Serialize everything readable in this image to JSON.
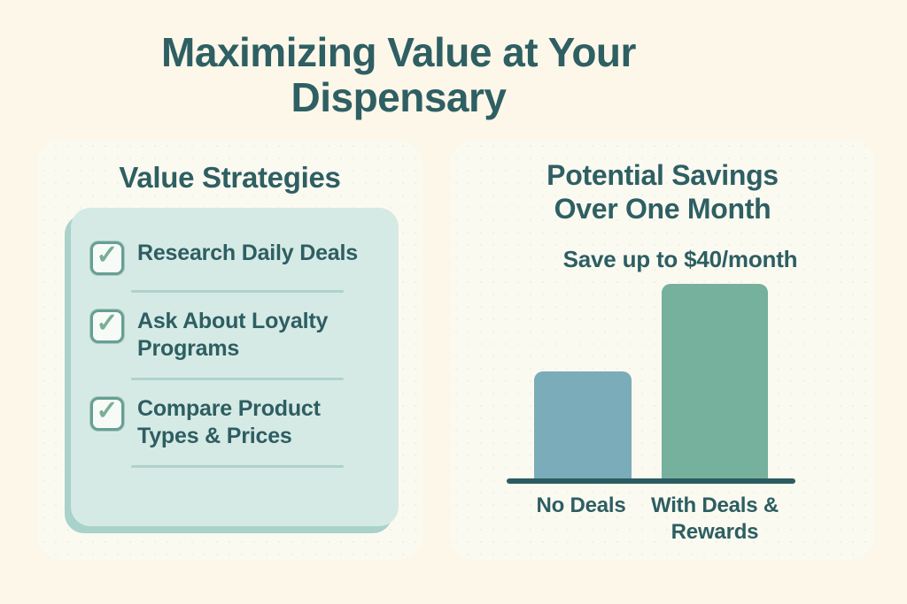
{
  "page": {
    "title_line1": "Maximizing Value at Your",
    "title_line2": "Dispensary"
  },
  "left_panel": {
    "heading": "Value Strategies",
    "checklist": {
      "checkmark_glyph": "✓",
      "items": [
        {
          "label": "Research Daily Deals",
          "checked": true
        },
        {
          "label": "Ask About Loyalty Programs",
          "checked": true
        },
        {
          "label": "Compare Product Types & Prices",
          "checked": true
        }
      ]
    }
  },
  "right_panel": {
    "heading_line1": "Potential Savings",
    "heading_line2": "Over One Month",
    "subtitle": "Save up to $40/month"
  },
  "chart_data": {
    "type": "bar",
    "title": "Potential Savings Over One Month",
    "subtitle": "Save up to $40/month",
    "categories": [
      "No Deals",
      "With Deals & Rewards"
    ],
    "values": [
      22,
      40
    ],
    "unit": "dollars per month",
    "ylim": [
      0,
      45
    ],
    "xlabel": "",
    "ylabel": "",
    "grid": false,
    "legend": false,
    "axis_labels_shown": false,
    "bar_colors": [
      "#7AACB9",
      "#76B19D"
    ],
    "note": "Only $40/month is stated explicitly; 22 is estimated from relative bar heights (122px vs 220px)."
  },
  "colors": {
    "background": "#FCF7E9",
    "panel": "#FBFAF1",
    "card_mint": "#D6EAE5",
    "card_shadow": "#A9D2CA",
    "text_teal": "#2E5F63",
    "divider": "#AFD2CC",
    "checkbox_border": "#66A092",
    "checkmark": "#79AE95",
    "bar_blue": "#7AACB9",
    "bar_green": "#76B19D",
    "axis": "#2C5C60"
  }
}
